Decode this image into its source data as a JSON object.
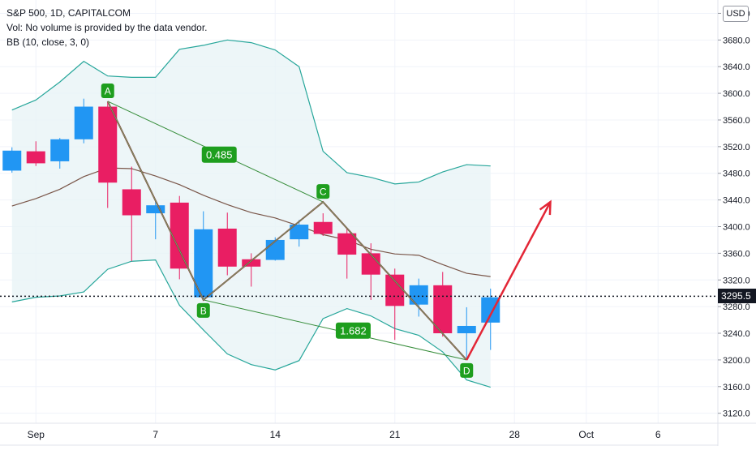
{
  "legend": {
    "title": "S&P 500, 1D, CAPITALCOM",
    "vol": "Vol: No volume is provided by the data vendor.",
    "bb": "BB (10, close, 3, 0)"
  },
  "currency": "USD",
  "last_price": "3295.5",
  "chart_data": {
    "type": "candlestick",
    "x_tick_labels": [
      {
        "label": "Sep",
        "index": 1
      },
      {
        "label": "7",
        "index": 6
      },
      {
        "label": "14",
        "index": 11
      },
      {
        "label": "21",
        "index": 16
      },
      {
        "label": "28",
        "index": 21
      },
      {
        "label": "Oct",
        "index": 24
      },
      {
        "label": "6",
        "index": 27
      }
    ],
    "y_ticks": [
      3120,
      3160,
      3200,
      3240,
      3280,
      3320,
      3360,
      3400,
      3440,
      3480,
      3520,
      3560,
      3600,
      3640,
      3680,
      3720
    ],
    "y_tick_labels": [
      "3120.0",
      "3160.0",
      "3200.0",
      "3240.0",
      "3280.0",
      "3320.0",
      "3360.0",
      "3400.0",
      "3440.0",
      "3480.0",
      "3520.0",
      "3560.0",
      "3600.0",
      "3640.0",
      "3680.0",
      "3720.0"
    ],
    "ylim": [
      3105,
      3740
    ],
    "xlim": [
      -0.5,
      29.5
    ],
    "candles": [
      {
        "i": 0,
        "o": 3484,
        "h": 3519,
        "c": 3514,
        "l": 3481
      },
      {
        "i": 1,
        "o": 3513,
        "h": 3528,
        "c": 3495,
        "l": 3491
      },
      {
        "i": 2,
        "o": 3498,
        "h": 3533,
        "c": 3531,
        "l": 3487
      },
      {
        "i": 3,
        "o": 3531,
        "h": 3592,
        "c": 3580,
        "l": 3525
      },
      {
        "i": 4,
        "o": 3580,
        "h": 3588,
        "c": 3466,
        "l": 3428
      },
      {
        "i": 5,
        "o": 3456,
        "h": 3490,
        "c": 3417,
        "l": 3348
      },
      {
        "i": 6,
        "o": 3420,
        "h": 3438,
        "c": 3432,
        "l": 3381
      },
      {
        "i": 7,
        "o": 3436,
        "h": 3446,
        "c": 3337,
        "l": 3321
      },
      {
        "i": 8,
        "o": 3294,
        "h": 3423,
        "c": 3396,
        "l": 3290
      },
      {
        "i": 9,
        "o": 3397,
        "h": 3421,
        "c": 3340,
        "l": 3327
      },
      {
        "i": 10,
        "o": 3351,
        "h": 3360,
        "c": 3340,
        "l": 3310
      },
      {
        "i": 11,
        "o": 3350,
        "h": 3384,
        "c": 3380,
        "l": 3349
      },
      {
        "i": 12,
        "o": 3381,
        "h": 3410,
        "c": 3403,
        "l": 3370
      },
      {
        "i": 13,
        "o": 3407,
        "h": 3420,
        "c": 3389,
        "l": 3386
      },
      {
        "i": 14,
        "o": 3390,
        "h": 3397,
        "c": 3358,
        "l": 3322
      },
      {
        "i": 15,
        "o": 3360,
        "h": 3375,
        "c": 3328,
        "l": 3290
      },
      {
        "i": 16,
        "o": 3328,
        "h": 3337,
        "c": 3281,
        "l": 3230
      },
      {
        "i": 17,
        "o": 3283,
        "h": 3322,
        "c": 3312,
        "l": 3265
      },
      {
        "i": 18,
        "o": 3312,
        "h": 3332,
        "c": 3240,
        "l": 3235
      },
      {
        "i": 19,
        "o": 3240,
        "h": 3279,
        "c": 3251,
        "l": 3200
      },
      {
        "i": 20,
        "o": 3256,
        "h": 3307,
        "c": 3294,
        "l": 3215
      }
    ],
    "bollinger": {
      "upper": [
        3575,
        3590,
        3617,
        3648,
        3626,
        3624,
        3624,
        3666,
        3672,
        3680,
        3676,
        3665,
        3640,
        3513,
        3481,
        3474,
        3464,
        3467,
        3482,
        3493,
        3491
      ],
      "basis": [
        3431,
        3442,
        3456,
        3475,
        3488,
        3487,
        3476,
        3463,
        3447,
        3433,
        3421,
        3413,
        3401,
        3388,
        3380,
        3366,
        3359,
        3357,
        3343,
        3330,
        3325
      ],
      "lower": [
        3287,
        3294,
        3296,
        3302,
        3336,
        3348,
        3350,
        3282,
        3245,
        3209,
        3193,
        3185,
        3199,
        3262,
        3277,
        3266,
        3247,
        3237,
        3212,
        3170,
        3159
      ]
    },
    "pattern_points": [
      {
        "label": "A",
        "i": 4,
        "price": 3588
      },
      {
        "label": "B",
        "i": 8,
        "price": 3290
      },
      {
        "label": "C",
        "i": 13,
        "price": 3437
      },
      {
        "label": "D",
        "i": 19,
        "price": 3200
      }
    ],
    "ratios": [
      {
        "label": "0.485",
        "i": 8,
        "price": 3508
      },
      {
        "label": "1.682",
        "i": 13.6,
        "price": 3244
      }
    ],
    "projection": {
      "from_i": 19,
      "from_price": 3200,
      "to_i": 22.5,
      "to_price": 3437
    },
    "last_price_value": 3295.5,
    "colors": {
      "up": "#2196f3",
      "down": "#e91e63",
      "bb_band": "#26a69a",
      "bb_basis": "#795548",
      "bb_fill": "#e8f4f6",
      "pattern_triangle": "#388e3c",
      "pattern_zigzag": "#8b3a3a",
      "label_bg": "#1e9e1e",
      "projection": "#e32636"
    }
  }
}
